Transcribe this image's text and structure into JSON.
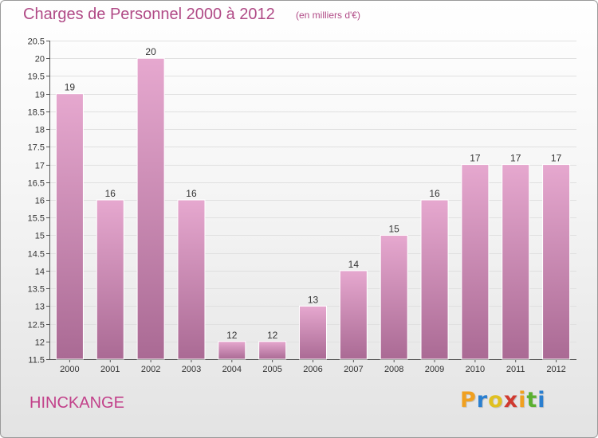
{
  "header": {
    "title": "Charges de Personnel 2000 à 2012",
    "subtitle": "(en milliers d'€)"
  },
  "footer": {
    "commune": "HINCKANGE",
    "logo": {
      "letters": [
        "P",
        "r",
        "o",
        "x",
        "i",
        "t",
        "i"
      ],
      "colors": [
        "#f0a020",
        "#2a7fd0",
        "#e0c020",
        "#d03a30",
        "#f0a020",
        "#5ab030",
        "#2a7fd0"
      ]
    }
  },
  "colors": {
    "bar_top": "#e6a8cf",
    "bar_bottom": "#aa6a94",
    "text": "#b04a86",
    "axis": "#555555",
    "grid": "#e0e0e0"
  },
  "chart_data": {
    "type": "bar",
    "title": "Charges de Personnel 2000 à 2012",
    "subtitle": "(en milliers d'€)",
    "categories": [
      "2000",
      "2001",
      "2002",
      "2003",
      "2004",
      "2005",
      "2006",
      "2007",
      "2008",
      "2009",
      "2010",
      "2011",
      "2012"
    ],
    "values": [
      19,
      16,
      20,
      16,
      12,
      12,
      13,
      14,
      15,
      16,
      17,
      17,
      17
    ],
    "data_labels": [
      "19",
      "16",
      "20",
      "16",
      "12",
      "12",
      "13",
      "14",
      "15",
      "16",
      "17",
      "17",
      "17"
    ],
    "ylim": [
      11.5,
      20.5
    ],
    "yticks": [
      11.5,
      12,
      12.5,
      13,
      13.5,
      14,
      14.5,
      15,
      15.5,
      16,
      16.5,
      17,
      17.5,
      18,
      18.5,
      19,
      19.5,
      20,
      20.5
    ],
    "ytick_labels": [
      "11.5",
      "12",
      "12.5",
      "13",
      "13.5",
      "14",
      "14.5",
      "15",
      "15.5",
      "16",
      "16.5",
      "17",
      "17.5",
      "18",
      "18.5",
      "19",
      "19.5",
      "20",
      "20.5"
    ],
    "grid": true,
    "legend": "none"
  }
}
